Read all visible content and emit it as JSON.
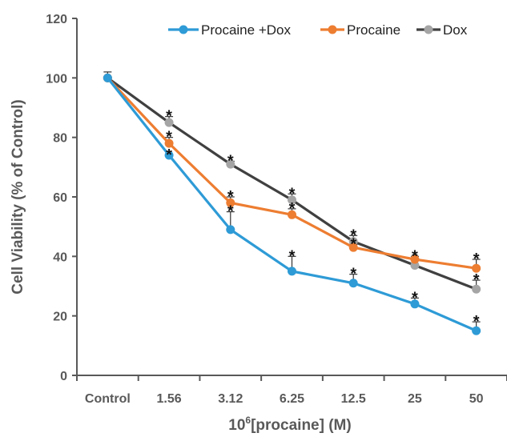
{
  "chart_data": {
    "type": "line",
    "title": "",
    "xlabel": "10",
    "xlabel_sup": "6",
    "xlabel_rest": "[procaine] (M)",
    "ylabel": "Cell Viability (% of Control)",
    "ylim": [
      0,
      120
    ],
    "yticks": [
      0,
      20,
      40,
      60,
      80,
      100,
      120
    ],
    "categories": [
      "Control",
      "1.56",
      "3.12",
      "6.25",
      "12.5",
      "25",
      "50"
    ],
    "legend_position": "top-right",
    "grid": false,
    "series": [
      {
        "name": "Procaine +Dox",
        "color": "#2e9bd6",
        "values": [
          100,
          74,
          49,
          35,
          31,
          24,
          15
        ],
        "errors": [
          0,
          0,
          6,
          5,
          3,
          2,
          3
        ],
        "significant": [
          false,
          true,
          true,
          true,
          true,
          true,
          true
        ]
      },
      {
        "name": "Procaine",
        "color": "#ed7d31",
        "values": [
          100,
          78,
          58,
          54,
          43,
          39,
          36
        ],
        "errors": [
          0,
          2,
          2,
          2,
          1,
          1,
          3
        ],
        "significant": [
          false,
          true,
          true,
          true,
          true,
          true,
          true
        ]
      },
      {
        "name": "Dox",
        "color": "#404040",
        "marker_color": "#a5a5a5",
        "values": [
          100,
          85,
          71,
          59,
          45,
          37,
          29
        ],
        "errors": [
          2,
          2,
          1,
          2,
          2,
          2,
          3
        ],
        "significant": [
          false,
          true,
          true,
          true,
          true,
          true,
          true
        ]
      }
    ],
    "significance_symbol": "*"
  }
}
